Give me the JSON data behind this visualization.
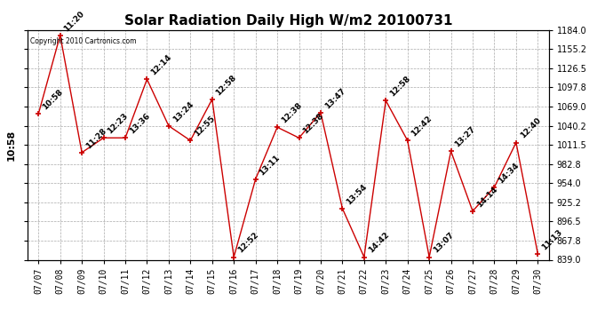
{
  "title": "Solar Radiation Daily High W/m2 20100731",
  "copyright_text": "Copyright 2010 Cartronics.com",
  "data": [
    {
      "date": "07/07",
      "value": 1058,
      "label": "10:58"
    },
    {
      "date": "07/08",
      "value": 1176,
      "label": "11:20"
    },
    {
      "date": "07/09",
      "value": 1000,
      "label": "11:28"
    },
    {
      "date": "07/10",
      "value": 1022,
      "label": "12:23"
    },
    {
      "date": "07/11",
      "value": 1022,
      "label": "13:36"
    },
    {
      "date": "07/12",
      "value": 1110,
      "label": "12:14"
    },
    {
      "date": "07/13",
      "value": 1040,
      "label": "13:24"
    },
    {
      "date": "07/14",
      "value": 1018,
      "label": "12:55"
    },
    {
      "date": "07/15",
      "value": 1080,
      "label": "12:58"
    },
    {
      "date": "07/16",
      "value": 843,
      "label": "12:52"
    },
    {
      "date": "07/17",
      "value": 960,
      "label": "13:11"
    },
    {
      "date": "07/18",
      "value": 1038,
      "label": "12:38"
    },
    {
      "date": "07/19",
      "value": 1022,
      "label": "12:38"
    },
    {
      "date": "07/20",
      "value": 1060,
      "label": "13:47"
    },
    {
      "date": "07/21",
      "value": 916,
      "label": "13:54"
    },
    {
      "date": "07/22",
      "value": 843,
      "label": "14:42"
    },
    {
      "date": "07/23",
      "value": 1078,
      "label": "12:58"
    },
    {
      "date": "07/24",
      "value": 1018,
      "label": "12:42"
    },
    {
      "date": "07/25",
      "value": 843,
      "label": "13:07"
    },
    {
      "date": "07/26",
      "value": 1002,
      "label": "13:27"
    },
    {
      "date": "07/27",
      "value": 912,
      "label": "14:14"
    },
    {
      "date": "07/28",
      "value": 948,
      "label": "14:34"
    },
    {
      "date": "07/29",
      "value": 1015,
      "label": "12:40"
    },
    {
      "date": "07/30",
      "value": 848,
      "label": "11:13"
    }
  ],
  "ylim": [
    839.0,
    1184.0
  ],
  "yticks": [
    839.0,
    867.8,
    896.5,
    925.2,
    954.0,
    982.8,
    1011.5,
    1040.2,
    1069.0,
    1097.8,
    1126.5,
    1155.2,
    1184.0
  ],
  "line_color": "#cc0000",
  "marker_color": "#cc0000",
  "bg_color": "#ffffff",
  "grid_color": "#aaaaaa",
  "title_fontsize": 11,
  "annotation_fontsize": 6.5,
  "tick_fontsize": 7,
  "ylabel_rotated": "10:58"
}
